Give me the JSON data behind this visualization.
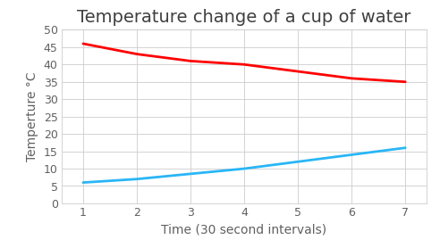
{
  "title": "Temperature change of a cup of water",
  "xlabel": "Time (30 second intervals)",
  "ylabel": "Temperture °C",
  "x": [
    1,
    2,
    3,
    4,
    5,
    6,
    7
  ],
  "hot_water": [
    46,
    43,
    41,
    40,
    38,
    36,
    35
  ],
  "cold_water": [
    6,
    7,
    8.5,
    10,
    12,
    14,
    16
  ],
  "hot_color": "#FF0000",
  "cold_color": "#29B6F6",
  "ylim": [
    0,
    50
  ],
  "xlim": [
    0.6,
    7.4
  ],
  "yticks": [
    0,
    5,
    10,
    15,
    20,
    25,
    30,
    35,
    40,
    45,
    50
  ],
  "xticks": [
    1,
    2,
    3,
    4,
    5,
    6,
    7
  ],
  "background_color": "#FFFFFF",
  "plot_bg_color": "#FFFFFF",
  "grid_color": "#CCCCCC",
  "title_fontsize": 14,
  "label_fontsize": 10,
  "tick_fontsize": 9,
  "line_width": 2.0,
  "title_color": "#404040",
  "label_color": "#606060",
  "tick_color": "#606060"
}
